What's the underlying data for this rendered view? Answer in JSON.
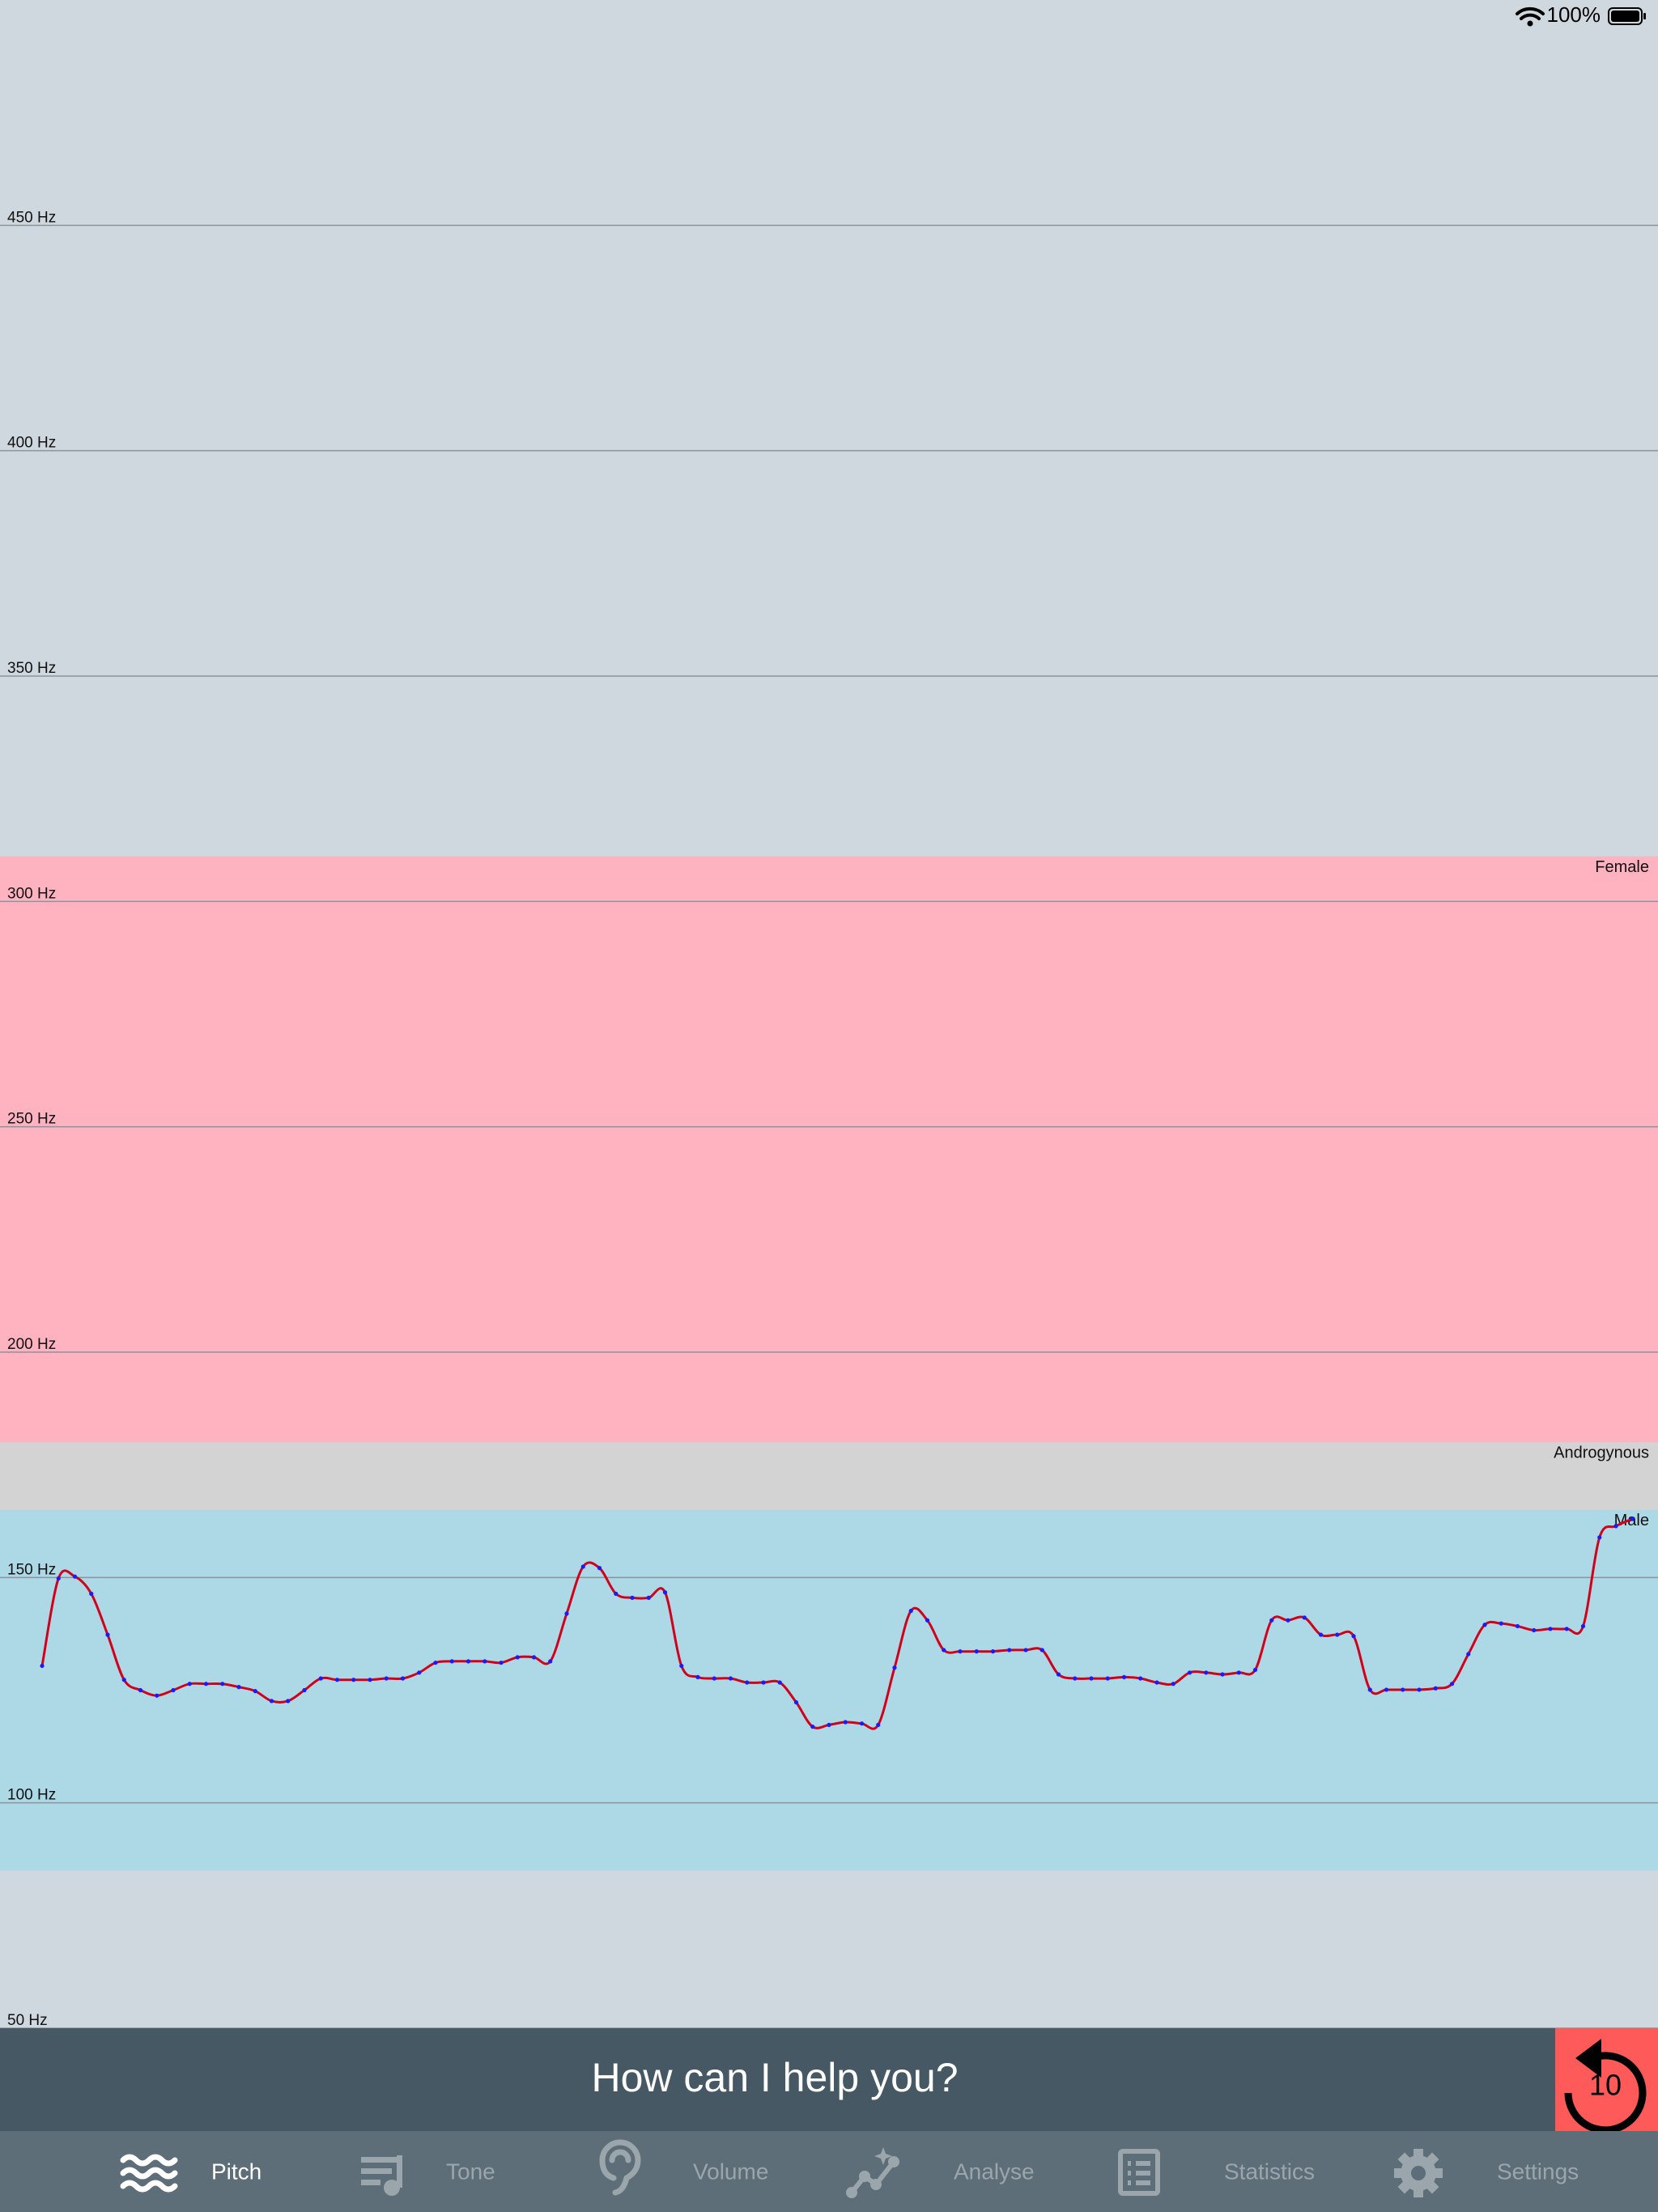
{
  "status_bar": {
    "battery": "100%"
  },
  "chart_data": {
    "type": "line",
    "ylim": [
      50,
      500
    ],
    "yticks": [
      {
        "value": 50,
        "label": "50 Hz"
      },
      {
        "value": 100,
        "label": "100 Hz"
      },
      {
        "value": 150,
        "label": "150 Hz"
      },
      {
        "value": 200,
        "label": "200 Hz"
      },
      {
        "value": 250,
        "label": "250 Hz"
      },
      {
        "value": 300,
        "label": "300 Hz"
      },
      {
        "value": 350,
        "label": "350 Hz"
      },
      {
        "value": 400,
        "label": "400 Hz"
      },
      {
        "value": 450,
        "label": "450 Hz"
      }
    ],
    "grid": true,
    "bands": [
      {
        "label": "Female",
        "from": 180,
        "to": 310,
        "color": "#ffb3c0"
      },
      {
        "label": "Androgynous",
        "from": 165,
        "to": 180,
        "color": "#d3d3d3"
      },
      {
        "label": "Male",
        "from": 85,
        "to": 165,
        "color": "#add8e6"
      }
    ],
    "series": [
      {
        "color": "#d0021b",
        "marker_color": "#1a1aff",
        "values": [
          130.4,
          149.8,
          150.2,
          146.4,
          137.3,
          127.3,
          125,
          123.8,
          125,
          126.4,
          126.4,
          126.4,
          125.7,
          124.8,
          122.6,
          122.6,
          125,
          127.6,
          127.3,
          127.3,
          127.3,
          127.6,
          127.6,
          128.9,
          131.1,
          131.4,
          131.4,
          131.4,
          131.1,
          132.3,
          132.3,
          131.4,
          142,
          152.4,
          152.1,
          146.4,
          145.5,
          145.5,
          146.7,
          130.4,
          127.9,
          127.6,
          127.6,
          126.7,
          126.7,
          126.7,
          122.3,
          116.9,
          117.3,
          117.9,
          117.6,
          117.3,
          130,
          142.6,
          140.5,
          133.9,
          133.6,
          133.6,
          133.6,
          133.9,
          133.9,
          133.9,
          128.5,
          127.6,
          127.6,
          127.6,
          127.9,
          127.6,
          126.7,
          126.4,
          128.9,
          128.9,
          128.5,
          128.9,
          129.5,
          140.5,
          140.5,
          141.1,
          137.3,
          137.3,
          137,
          125.1,
          125.1,
          125.1,
          125.1,
          125.4,
          126.4,
          133,
          139.5,
          139.8,
          139.2,
          138.3,
          138.6,
          138.6,
          139.2,
          158.9,
          161.4,
          163.0
        ]
      }
    ]
  },
  "banner": {
    "text": "How can I help you?",
    "button_label": "10"
  },
  "tab_bar": {
    "tabs": [
      "Pitch",
      "Tone",
      "Volume",
      "Analyse",
      "Statistics",
      "Settings"
    ],
    "active": 0
  }
}
